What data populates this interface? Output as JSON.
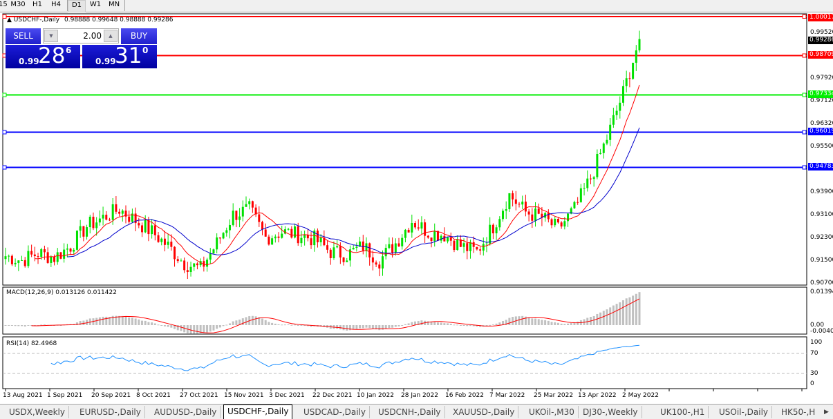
{
  "timeframes": [
    "15",
    "M30",
    "H1",
    "H4",
    "D1",
    "W1",
    "MN"
  ],
  "active_timeframe": "D1",
  "chart": {
    "title": "USDCHF-,Daily",
    "ohlc": "0.98888 0.99648 0.98888 0.99286",
    "closes": [
      0.9165,
      0.915,
      0.9175,
      0.916,
      0.92,
      0.927,
      0.93,
      0.933,
      0.929,
      0.925,
      0.92,
      0.914,
      0.912,
      0.921,
      0.931,
      0.933,
      0.923,
      0.925,
      0.924,
      0.9225,
      0.918,
      0.917,
      0.92,
      0.915,
      0.921,
      0.929,
      0.925,
      0.924,
      0.92,
      0.918,
      0.927,
      0.938,
      0.932,
      0.93,
      0.926,
      0.933,
      0.944,
      0.958,
      0.974,
      0.99286
    ],
    "bull_color": "#00e000",
    "bear_color": "#ff0000",
    "ma_fast_color": "#ff0000",
    "ma_slow_color": "#0000cc",
    "price_axis": [
      "0.99520",
      "0.97920",
      "0.97120",
      "0.96320",
      "0.95500",
      "0.93900",
      "0.93100",
      "0.92300",
      "0.91500",
      "0.90700"
    ],
    "current_price": "0.99286",
    "levels": [
      {
        "price": "1.00017",
        "color": "#ff0000"
      },
      {
        "price": "0.98709",
        "color": "#ff0000"
      },
      {
        "price": "0.97334",
        "color": "#00ee00"
      },
      {
        "price": "0.96019",
        "color": "#0000ff"
      },
      {
        "price": "0.94783",
        "color": "#0000ff"
      }
    ],
    "dates": [
      "13 Aug 2021",
      "1 Sep 2021",
      "20 Sep 2021",
      "8 Oct 2021",
      "27 Oct 2021",
      "15 Nov 2021",
      "3 Dec 2021",
      "22 Dec 2021",
      "10 Jan 2022",
      "28 Jan 2022",
      "16 Feb 2022",
      "7 Mar 2022",
      "25 Mar 2022",
      "13 Apr 2022",
      "2 May 2022"
    ]
  },
  "trade": {
    "sell_label": "SELL",
    "buy_label": "BUY",
    "lot": "2.00",
    "sell_prefix": "0.99",
    "sell_big": "28",
    "sell_sup": "6",
    "buy_prefix": "0.99",
    "buy_big": "31",
    "buy_sup": "0"
  },
  "macd": {
    "label": "MACD(12,26,9) 0.013126 0.011422",
    "axis": [
      "0.01394",
      "0.00",
      "-0.00404"
    ],
    "hist_color": "#c0c0c0",
    "signal_color": "#ff0000"
  },
  "rsi": {
    "label": "RSI(14) 82.4968",
    "axis": [
      "100",
      "70",
      "30",
      "0"
    ],
    "line_color": "#1e90ff"
  },
  "tabs": [
    "USDX,Weekly",
    "EURUSD-,Daily",
    "AUDUSD-,Daily",
    "USDCHF-,Daily",
    "USDCAD-,Daily",
    "USDCNH-,Daily",
    "XAUUSD-,Daily",
    "UKOil-,M30",
    "DJ30-,Weekly",
    "UK100-,H1",
    "USOil-,Daily",
    "HK50-,H"
  ],
  "active_tab": "USDCHF-,Daily"
}
